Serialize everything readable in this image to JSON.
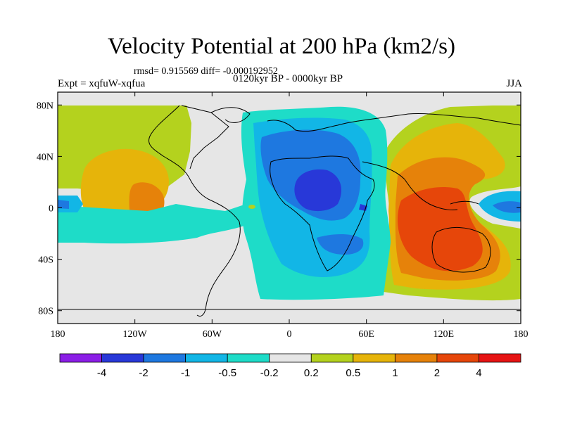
{
  "chart_data": {
    "type": "contour-map",
    "title": "Velocity Potential at 200 hPa (km2/s)",
    "stats": "rmsd= 0.915569 diff= -0.000192952",
    "left_label": "Expt = xqfuW-xqfua",
    "center_label": "0120kyr BP - 0000kyr BP",
    "right_label": "JJA",
    "x_ticks": [
      "180",
      "120W",
      "60W",
      "0",
      "60E",
      "120E",
      "180"
    ],
    "x_tick_values": [
      -180,
      -120,
      -60,
      0,
      60,
      120,
      180
    ],
    "y_ticks": [
      "80N",
      "40N",
      "0",
      "40S",
      "80S"
    ],
    "y_tick_values": [
      80,
      40,
      0,
      -40,
      -80
    ],
    "xlim": [
      -180,
      180
    ],
    "ylim": [
      -90,
      90
    ],
    "colorbar": {
      "labels": [
        "-4",
        "-2",
        "-1",
        "-0.5",
        "-0.2",
        "0.2",
        "0.5",
        "1",
        "2",
        "4"
      ],
      "colors": [
        "#8b1ee6",
        "#2838d8",
        "#1e78e0",
        "#12b6e6",
        "#1edcc8",
        "#e6e6e6",
        "#b4d21e",
        "#e6b40a",
        "#e6820a",
        "#e6460a",
        "#e61414"
      ]
    },
    "features": [
      {
        "name": "negative-center-africa",
        "lon": 25,
        "lat": 10,
        "level": "-2"
      },
      {
        "name": "positive-center-maritime-continent",
        "lon": 110,
        "lat": -5,
        "level": "4"
      },
      {
        "name": "positive-center-east-pacific",
        "lon": -115,
        "lat": 5,
        "level": "1"
      }
    ]
  }
}
